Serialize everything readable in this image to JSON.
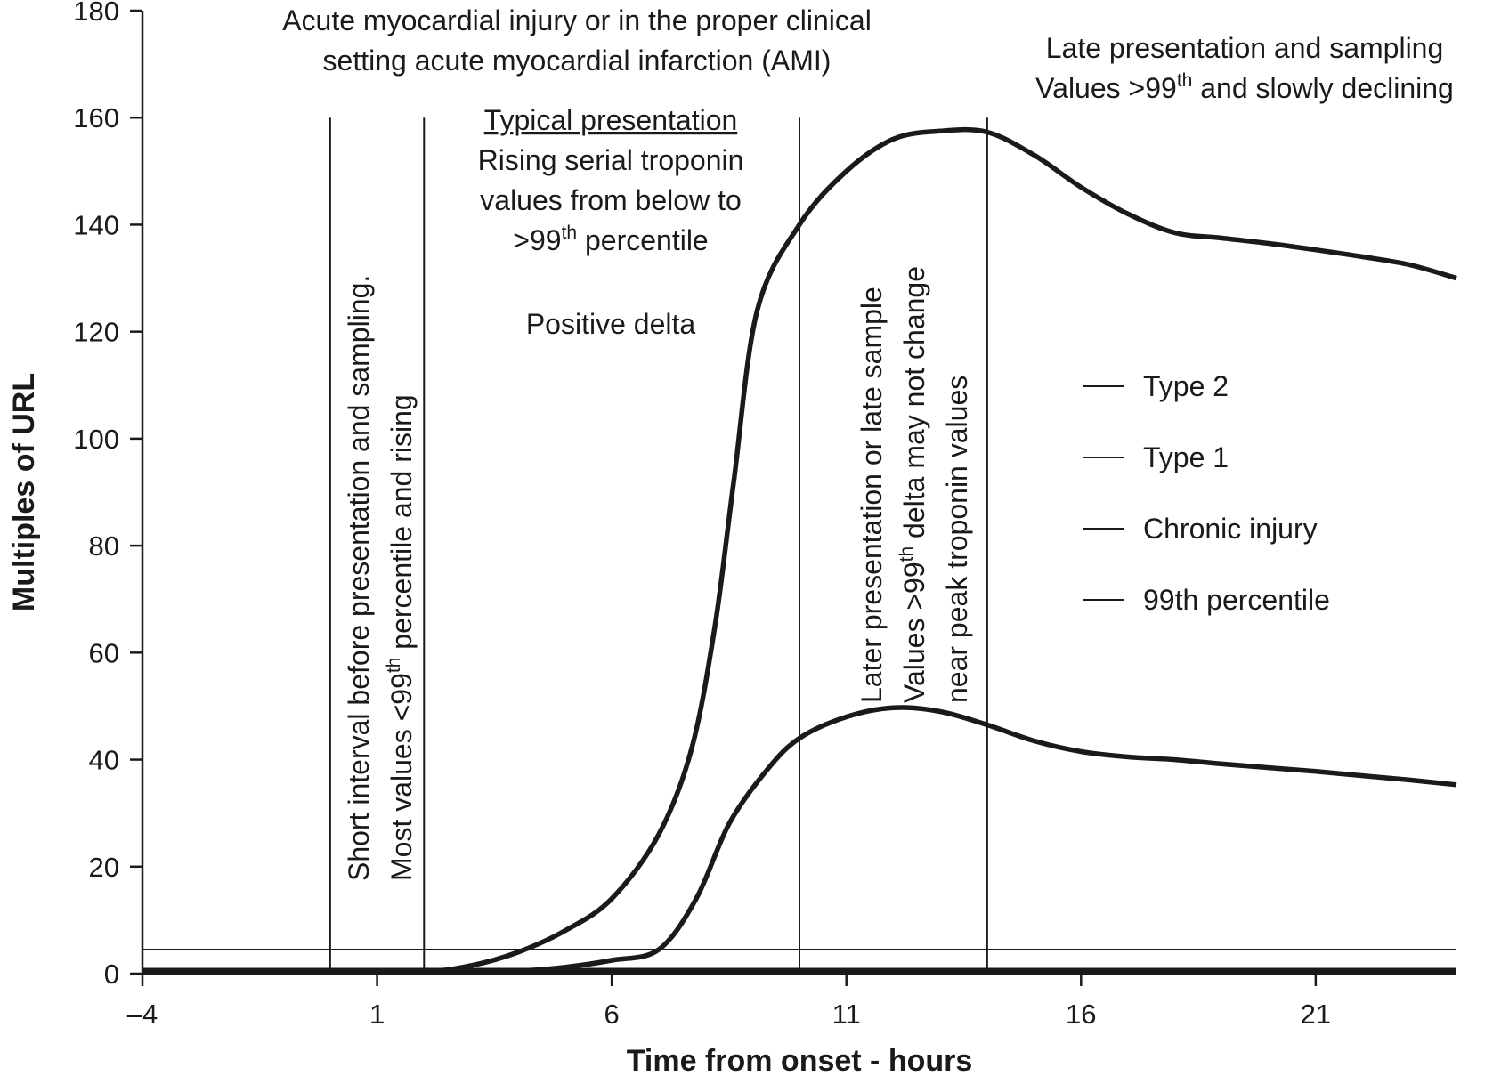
{
  "chart_data": {
    "type": "line",
    "xlabel": "Time from onset - hours",
    "ylabel": "Multiples of URL",
    "xlim": [
      -4,
      24
    ],
    "ylim": [
      0,
      180
    ],
    "x_ticks": [
      "–4",
      "1",
      "6",
      "11",
      "16",
      "21"
    ],
    "y_ticks": [
      "0",
      "20",
      "40",
      "60",
      "80",
      "100",
      "120",
      "140",
      "160",
      "180"
    ],
    "series": [
      {
        "name": "Type 1",
        "points": [
          [
            -4,
            0.3
          ],
          [
            0,
            0.3
          ],
          [
            2,
            0.4
          ],
          [
            3,
            1.5
          ],
          [
            4,
            4
          ],
          [
            5,
            8
          ],
          [
            6,
            14
          ],
          [
            7,
            26
          ],
          [
            7.7,
            42
          ],
          [
            8.2,
            65
          ],
          [
            8.6,
            92
          ],
          [
            9.1,
            124
          ],
          [
            10,
            140
          ],
          [
            11,
            150
          ],
          [
            12,
            156
          ],
          [
            13,
            157.5
          ],
          [
            14,
            157.3
          ],
          [
            15,
            153
          ],
          [
            16,
            147
          ],
          [
            17,
            142
          ],
          [
            18,
            138.5
          ],
          [
            19,
            137.5
          ],
          [
            20,
            136.5
          ],
          [
            21,
            135.3
          ],
          [
            22,
            134
          ],
          [
            23,
            132.5
          ],
          [
            24,
            130
          ]
        ]
      },
      {
        "name": "Type 2",
        "points": [
          [
            -4,
            0.3
          ],
          [
            3,
            0.3
          ],
          [
            4,
            0.5
          ],
          [
            5,
            1.2
          ],
          [
            6,
            2.5
          ],
          [
            7,
            4.5
          ],
          [
            7.8,
            14
          ],
          [
            8.5,
            28
          ],
          [
            9.3,
            38
          ],
          [
            10,
            44
          ],
          [
            11,
            48
          ],
          [
            12,
            49.7
          ],
          [
            13,
            49
          ],
          [
            14,
            46.5
          ],
          [
            15,
            43.5
          ],
          [
            16,
            41.5
          ],
          [
            17,
            40.5
          ],
          [
            18,
            40
          ],
          [
            19,
            39.2
          ],
          [
            20,
            38.5
          ],
          [
            21,
            37.8
          ],
          [
            22,
            37
          ],
          [
            23,
            36.2
          ],
          [
            24,
            35.3
          ]
        ]
      },
      {
        "name": "Chronic injury",
        "points": [
          [
            -4,
            0.5
          ],
          [
            24,
            0.5
          ]
        ]
      },
      {
        "name": "99th percentile",
        "points": [
          [
            -4,
            4.5
          ],
          [
            24,
            4.5
          ]
        ]
      }
    ],
    "vertical_lines": [
      0,
      2,
      10,
      14
    ],
    "legend": [
      "Type 2",
      "Type 1",
      "Chronic injury",
      "99th percentile"
    ],
    "legend_position": "right"
  },
  "annotations": {
    "top_title_line1": "Acute myocardial injury or in the proper clinical",
    "top_title_line2": "setting acute myocardial infarction (AMI)",
    "late_line1": "Late presentation and sampling",
    "late_line2_pre": "Values >99",
    "late_line2_sup": "th",
    "late_line2_post": " and slowly declining",
    "typical_heading": "Typical presentation",
    "typical_line1": "Rising serial troponin",
    "typical_line2": "values from below to",
    "typical_line3_pre": ">99",
    "typical_line3_sup": "th",
    "typical_line3_post": " percentile",
    "positive_delta": "Positive delta",
    "short_line1": "Short interval before presentation and sampling.",
    "short_line2_pre": "Most values <99",
    "short_line2_sup": "th",
    "short_line2_post": " percentile and rising",
    "later_line1": "Later presentation or late sample",
    "later_line2_pre": "Values >99",
    "later_line2_sup": "th",
    "later_line2_post": " delta may not change",
    "later_line3": "near peak troponin values"
  }
}
